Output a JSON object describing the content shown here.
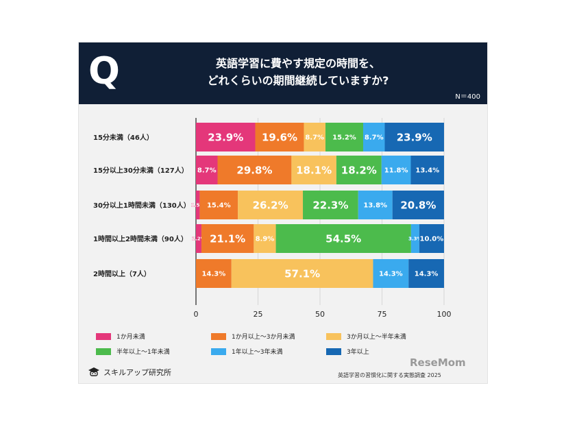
{
  "header": {
    "q_mark": "Q",
    "title_line1": "英語学習に費やす規定の時間を、",
    "title_line2": "どれくらいの期間継続していますか?",
    "n_label": "N＝400"
  },
  "chart_data": {
    "type": "bar",
    "orientation": "horizontal",
    "stacked": true,
    "categories": [
      "15分未満（46人）",
      "15分以上30分未満（127人）",
      "30分以上1時間未満（130人）",
      "1時間以上2時間未満（90人）",
      "2時間以上（7人）"
    ],
    "series": [
      {
        "name": "1か月未満",
        "color": "#e4377a",
        "values": [
          23.9,
          8.7,
          1.5,
          2.2,
          0
        ],
        "labels": [
          "23.9%",
          "8.7%",
          "1.5%",
          "2.2%",
          ""
        ]
      },
      {
        "name": "1か月以上～3か月未満",
        "color": "#ef7a2a",
        "values": [
          19.6,
          29.8,
          15.4,
          21.1,
          14.3
        ],
        "labels": [
          "19.6%",
          "29.8%",
          "15.4%",
          "21.1%",
          "14.3%"
        ]
      },
      {
        "name": "3か月以上～半年未満",
        "color": "#f8c25c",
        "values": [
          8.7,
          18.1,
          26.2,
          8.9,
          57.1
        ],
        "labels": [
          "8.7%",
          "18.1%",
          "26.2%",
          "8.9%",
          "57.1%"
        ]
      },
      {
        "name": "半年以上～1年未満",
        "color": "#4cbb4c",
        "values": [
          15.2,
          18.2,
          22.3,
          54.5,
          0
        ],
        "labels": [
          "15.2%",
          "18.2%",
          "22.3%",
          "54.5%",
          ""
        ]
      },
      {
        "name": "1年以上～3年未満",
        "color": "#3aaaee",
        "values": [
          8.7,
          11.8,
          13.8,
          3.3,
          14.3
        ],
        "labels": [
          "8.7%",
          "11.8%",
          "13.8%",
          "3.3%",
          "14.3%"
        ]
      },
      {
        "name": "3年以上",
        "color": "#1768b3",
        "values": [
          23.9,
          13.4,
          20.8,
          10.0,
          14.3
        ],
        "labels": [
          "23.9%",
          "13.4%",
          "20.8%",
          "10.0%",
          "14.3%"
        ]
      }
    ],
    "xlim": [
      0,
      100
    ],
    "xticks": [
      "0",
      "25",
      "50",
      "75",
      "100"
    ],
    "grid": true,
    "legend_position": "bottom"
  },
  "footer": {
    "brand": "スキルアップ研究所",
    "source": "英語学習の習慣化に関する実態調査 2025",
    "watermark": "ReseMom"
  }
}
